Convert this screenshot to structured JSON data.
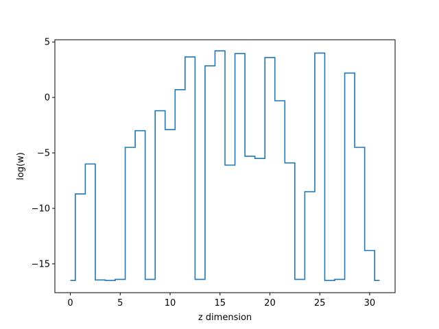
{
  "chart_data": {
    "type": "line",
    "drawstyle": "steps-mid",
    "xlabel": "z dimension",
    "ylabel": "log(w)",
    "xlim": [
      -1.55,
      32.55
    ],
    "ylim": [
      -17.6,
      5.2
    ],
    "xticks": [
      0,
      5,
      10,
      15,
      20,
      25,
      30
    ],
    "yticks": [
      5,
      0,
      -5,
      -10,
      -15
    ],
    "grid": false,
    "series": [
      {
        "color": "#1f77b4",
        "x": [
          0,
          1,
          2,
          3,
          4,
          5,
          6,
          7,
          8,
          9,
          10,
          11,
          12,
          13,
          14,
          15,
          16,
          17,
          18,
          19,
          20,
          21,
          22,
          23,
          24,
          25,
          26,
          27,
          28,
          29,
          30,
          31
        ],
        "y": [
          -16.5,
          -8.7,
          -6.0,
          -16.45,
          -16.5,
          -16.4,
          -4.5,
          -3.0,
          -16.4,
          -1.2,
          -2.9,
          0.7,
          3.65,
          -16.4,
          2.85,
          4.2,
          -6.1,
          3.95,
          -5.3,
          -5.5,
          3.6,
          -0.3,
          -5.9,
          -16.4,
          -8.5,
          4.0,
          -16.5,
          -16.4,
          2.2,
          -4.5,
          -13.8,
          -16.5
        ]
      }
    ]
  }
}
